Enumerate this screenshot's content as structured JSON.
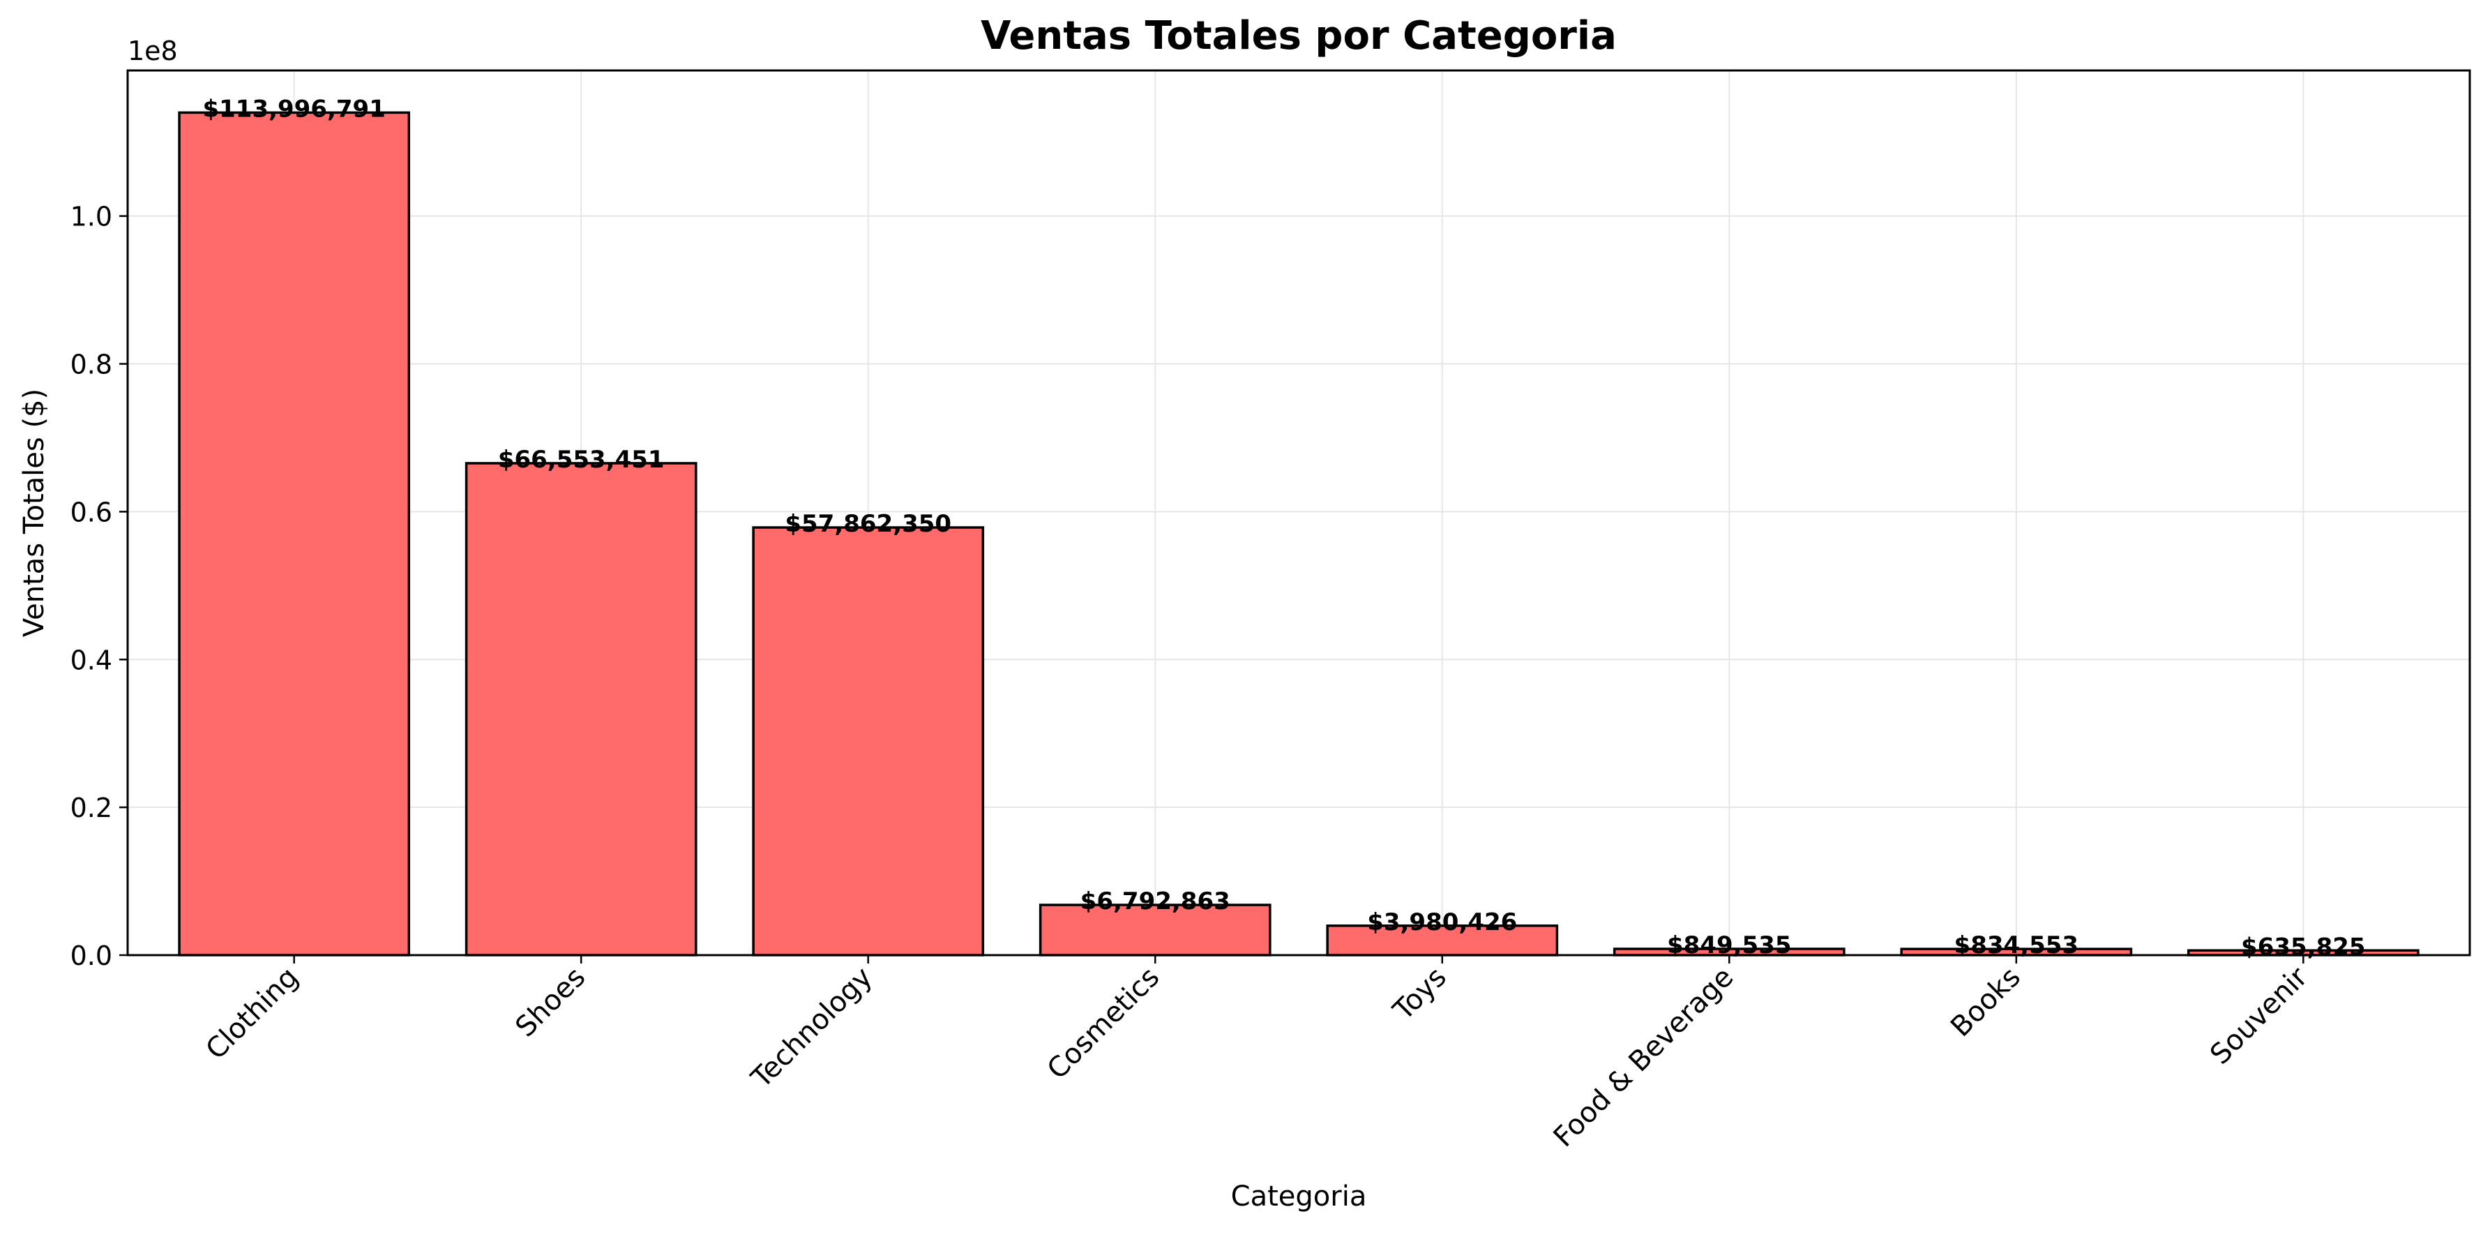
{
  "chart_data": {
    "type": "bar",
    "title": "Ventas Totales por Categoria",
    "xlabel": "Categoria",
    "ylabel": "Ventas Totales ($)",
    "y_scale_label": "1e8",
    "categories": [
      "Clothing",
      "Shoes",
      "Technology",
      "Cosmetics",
      "Toys",
      "Food & Beverage",
      "Books",
      "Souvenir"
    ],
    "values": [
      113996791,
      66553451,
      57862350,
      6792863,
      3980426,
      849535,
      834553,
      635825
    ],
    "value_labels": [
      "$113,996,791",
      "$66,553,451",
      "$57,862,350",
      "$6,792,863",
      "$3,980,426",
      "$849,535",
      "$834,553",
      "$635,825"
    ],
    "yticks": [
      0,
      20000000,
      40000000,
      60000000,
      80000000,
      100000000
    ],
    "ytick_labels": [
      "0.0",
      "0.2",
      "0.4",
      "0.6",
      "0.8",
      "1.0"
    ],
    "ylim": [
      0,
      119696630
    ],
    "grid": true,
    "legend": "none",
    "colors": {
      "bar_fill": "#ff6b6b",
      "bar_edge": "#000000",
      "grid": "#e6e6e6",
      "axis": "#000000",
      "text": "#000000"
    }
  }
}
